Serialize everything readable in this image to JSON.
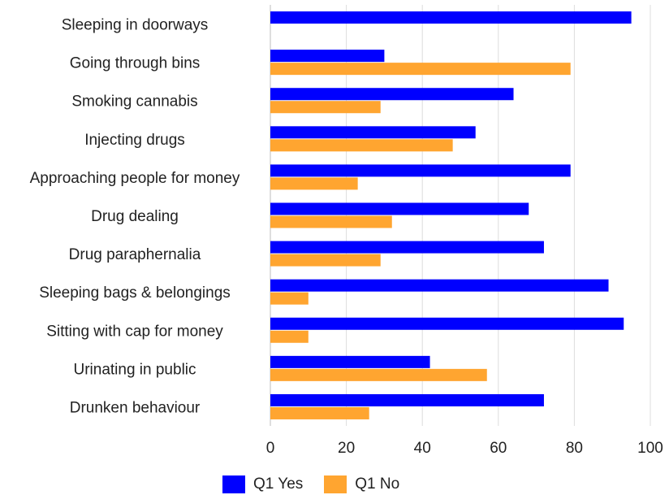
{
  "chart_data": {
    "type": "bar",
    "orientation": "horizontal",
    "categories": [
      "Sleeping in doorways",
      "Going through bins",
      "Smoking cannabis",
      "Injecting drugs",
      "Approaching people for money",
      "Drug dealing",
      "Drug paraphernalia",
      "Sleeping bags & belongings",
      "Sitting with cap for money",
      "Urinating in public",
      "Drunken behaviour"
    ],
    "series": [
      {
        "name": "Q1 Yes",
        "color": "#0000ff",
        "values": [
          95,
          30,
          64,
          54,
          79,
          68,
          72,
          89,
          93,
          42,
          72
        ]
      },
      {
        "name": "Q1 No",
        "color": "#ffa530",
        "values": [
          null,
          79,
          29,
          48,
          23,
          32,
          29,
          10,
          10,
          57,
          26
        ]
      }
    ],
    "xlim": [
      0,
      100
    ],
    "xticks": [
      "0",
      "20",
      "40",
      "60",
      "80",
      "100"
    ],
    "grid": "vertical",
    "legend": "bottom"
  }
}
